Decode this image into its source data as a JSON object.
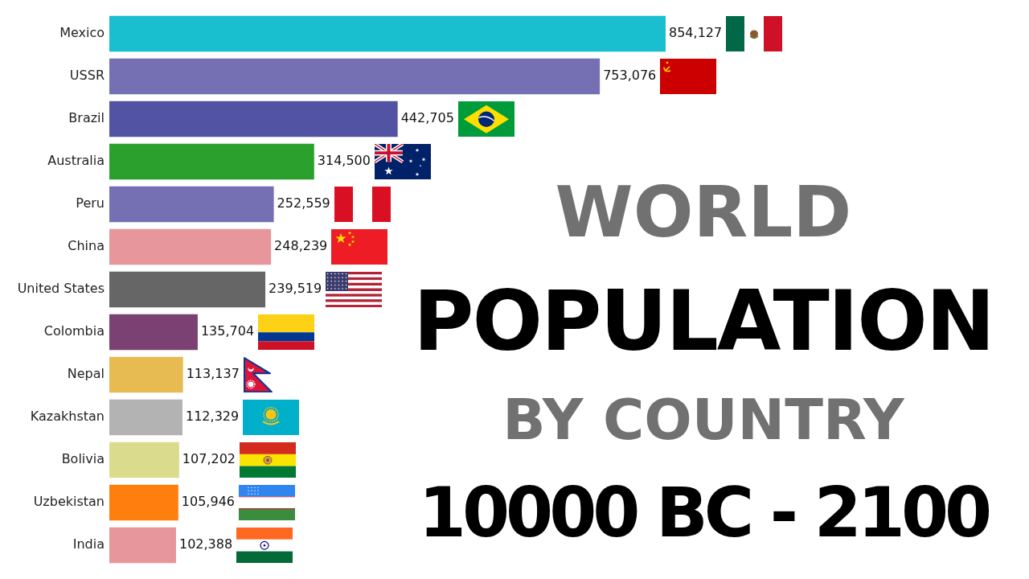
{
  "chart_data": {
    "type": "bar",
    "orientation": "horizontal",
    "title": "WORLD POPULATION BY COUNTRY",
    "subtitle": "10000 BC - 2100",
    "categories": [
      "Mexico",
      "USSR",
      "Brazil",
      "Australia",
      "Peru",
      "China",
      "United States",
      "Colombia",
      "Nepal",
      "Kazakhstan",
      "Bolivia",
      "Uzbekistan",
      "India"
    ],
    "values": [
      854127,
      753076,
      442705,
      314500,
      252559,
      248239,
      239519,
      135704,
      113137,
      112329,
      107202,
      105946,
      102388
    ],
    "colors": [
      "#19bfcf",
      "#7570b3",
      "#5254a3",
      "#2ca02c",
      "#7570b3",
      "#e7969c",
      "#666666",
      "#7b4173",
      "#e7ba52",
      "#b3b3b3",
      "#dbdb8d",
      "#ff7f0e",
      "#e7969c"
    ],
    "value_labels": [
      "854,127",
      "753,076",
      "442,705",
      "314,500",
      "252,559",
      "248,239",
      "239,519",
      "135,704",
      "113,137",
      "112,329",
      "107,202",
      "105,946",
      "102,388"
    ],
    "tick_labels": "y"
  }
}
